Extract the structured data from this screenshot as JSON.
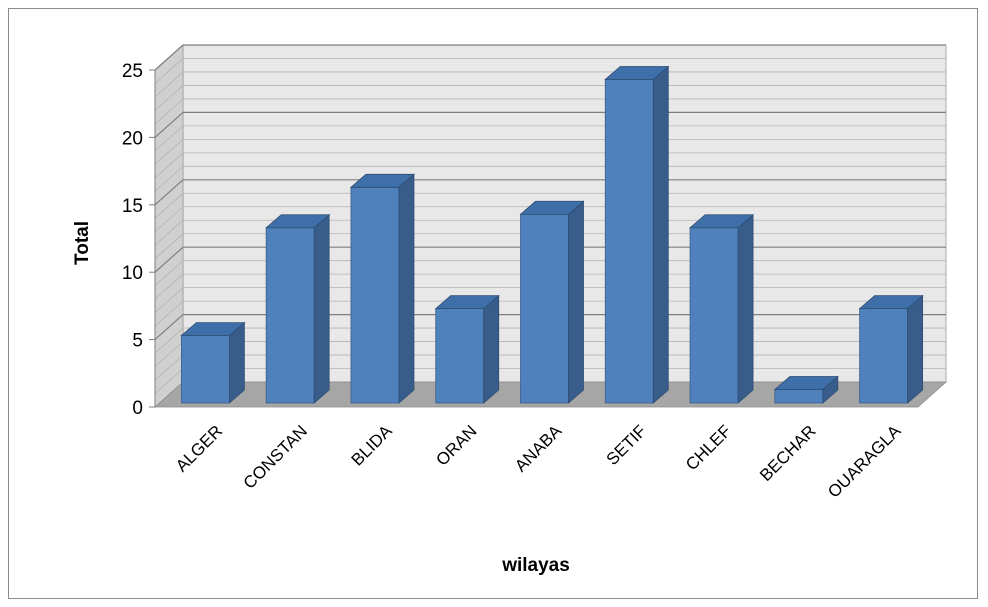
{
  "chart_data": {
    "type": "bar",
    "style": "3d-column",
    "title": "",
    "xlabel": "wilayas",
    "ylabel": "Total",
    "categories": [
      "ALGER",
      "CONSTAN",
      "BLIDA",
      "ORAN",
      "ANABA",
      "SETIF",
      "CHLEF",
      "BECHAR",
      "OUARAGLA"
    ],
    "series": [
      {
        "values": [
          5,
          13,
          16,
          7,
          14,
          24,
          13,
          1,
          7
        ]
      }
    ],
    "ylim": [
      0,
      25
    ],
    "yticks": [
      "0",
      "5",
      "10",
      "15",
      "20",
      "25"
    ],
    "minor_gridlines_step": 1,
    "grid": true,
    "legend": "none",
    "colors": {
      "bar_front": "#4f81bd",
      "bar_side": "#385d8a",
      "bar_top": "#3f6fa8",
      "wall": "#e8e8e8",
      "floor": "#a6a6a6",
      "gridline_major": "#7f7f7f",
      "gridline_minor": "#b3b3b3"
    }
  }
}
